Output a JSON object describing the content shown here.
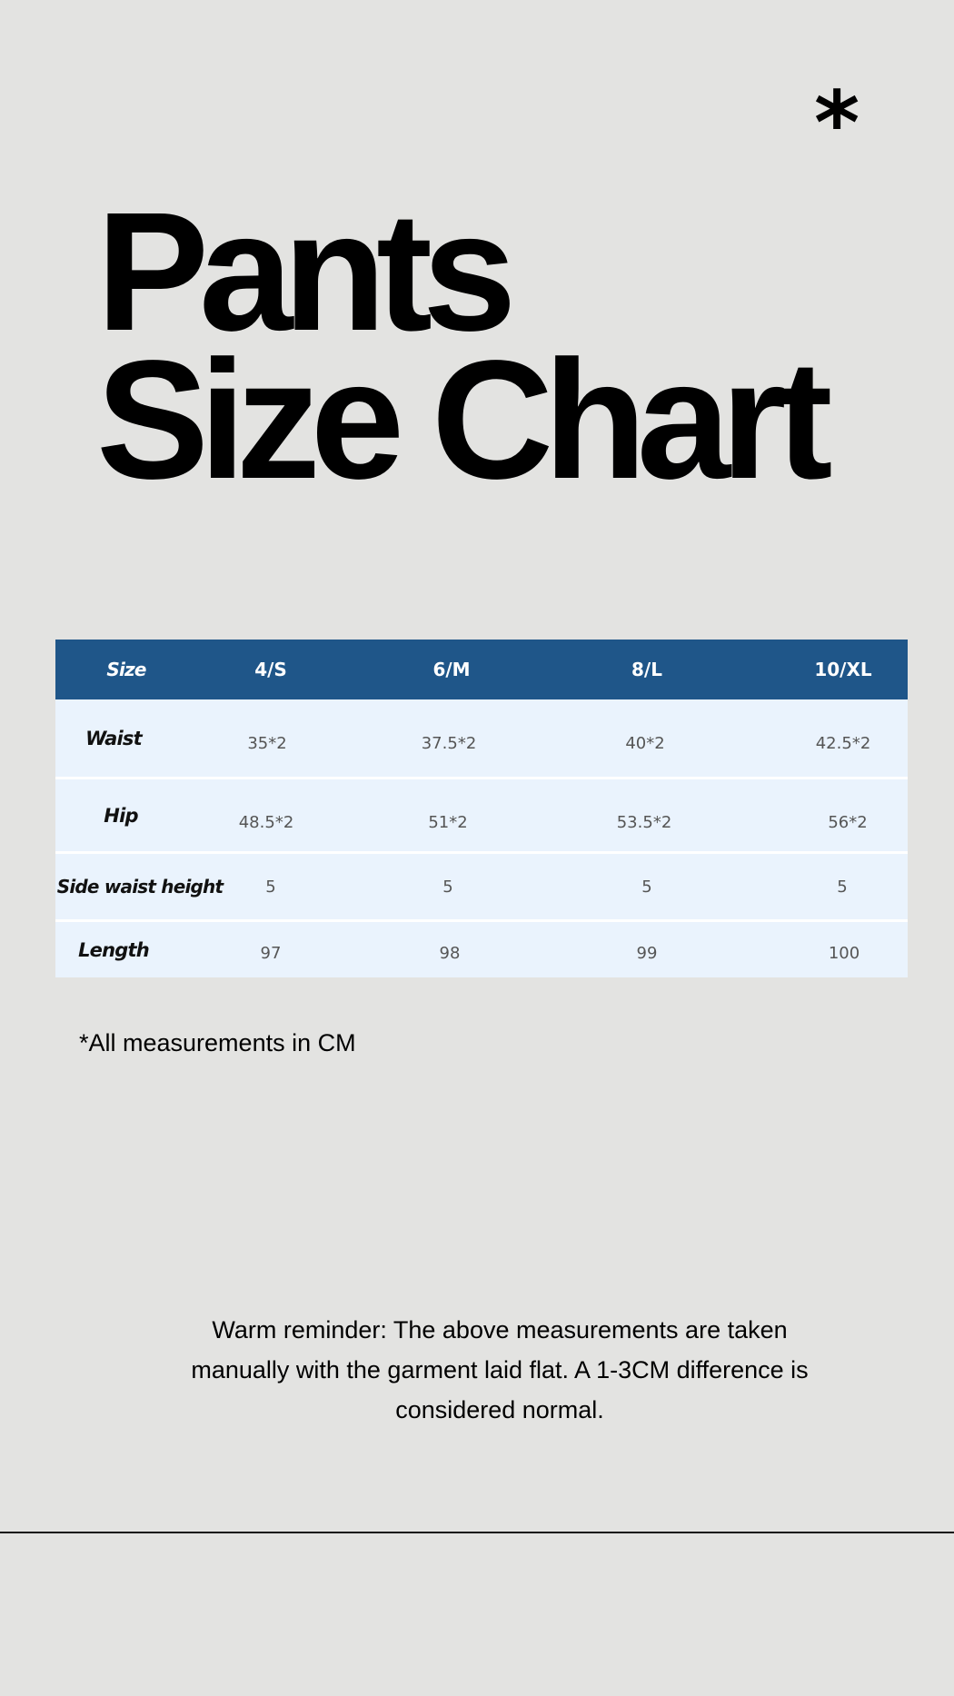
{
  "decoration": {
    "asterisk": "*"
  },
  "title": {
    "line1": "Pants",
    "line2": "Size Chart"
  },
  "table": {
    "header": [
      "Size",
      "4/S",
      "6/M",
      "8/L",
      "10/XL"
    ],
    "rows": [
      {
        "label": "Waist",
        "values": [
          "35*2",
          "37.5*2",
          "40*2",
          "42.5*2"
        ]
      },
      {
        "label": "Hip",
        "values": [
          "48.5*2",
          "51*2",
          "53.5*2",
          "56*2"
        ]
      },
      {
        "label": "Side waist height",
        "values": [
          "5",
          "5",
          "5",
          "5"
        ]
      },
      {
        "label": "Length",
        "values": [
          "97",
          "98",
          "99",
          "100"
        ]
      }
    ]
  },
  "colors": {
    "header_bg": "#1f5689",
    "row_bg": "#eaf3fd",
    "page_bg": "#e3e3e1"
  },
  "note": "*All measurements in CM",
  "reminder": {
    "line1": "Warm reminder: The above measurements are taken",
    "line2": "manually with the garment laid flat. A 1-3CM difference is",
    "line3": "considered normal."
  }
}
